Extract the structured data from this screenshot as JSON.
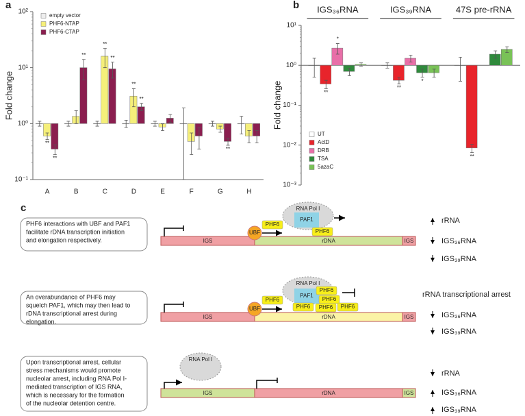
{
  "chart_data": [
    {
      "type": "bar",
      "label": "a",
      "y_label": "Fold change",
      "log_scale": true,
      "legend": "upper left",
      "category_axis": "bottom",
      "categories": [
        "A",
        "B",
        "C",
        "D",
        "E",
        "F",
        "G",
        "H"
      ],
      "ylim": [
        0.1,
        100
      ],
      "yticks": [
        {
          "value": 0.1,
          "label": "10⁻¹"
        },
        {
          "value": 1,
          "label": "10⁰"
        },
        {
          "value": 10,
          "label": "10¹"
        },
        {
          "value": 100,
          "label": "10²"
        }
      ],
      "series": [
        {
          "name": "empty vector",
          "color": "#eeeeee",
          "values": [
            1,
            1,
            1,
            1,
            1,
            1,
            1,
            1
          ],
          "errors": [
            0.1,
            0.1,
            0.1,
            0.15,
            0.1,
            0.9,
            0.1,
            0.35
          ],
          "significance": [
            null,
            null,
            null,
            null,
            null,
            null,
            null,
            null
          ]
        },
        {
          "name": "PHF6-NTAP",
          "color": "#f5ef7a",
          "values": [
            0.6,
            1.35,
            16,
            3.1,
            0.87,
            0.48,
            0.8,
            0.6
          ],
          "errors": [
            0.08,
            0.35,
            6,
            1.1,
            0.12,
            0.2,
            0.1,
            0.15
          ],
          "significance": [
            "**",
            null,
            "**",
            "**",
            null,
            null,
            null,
            null
          ]
        },
        {
          "name": "PHF6-CTAP",
          "color": "#8b1e4f",
          "values": [
            0.35,
            10,
            9.5,
            2,
            1.25,
            0.6,
            0.48,
            0.6
          ],
          "errors": [
            0.07,
            4,
            3,
            0.3,
            0.2,
            0.25,
            0.07,
            0.15
          ],
          "significance": [
            "**",
            "**",
            "**",
            "**",
            null,
            null,
            "**",
            null
          ]
        }
      ]
    },
    {
      "type": "bar",
      "label": "b",
      "y_label": "Fold change",
      "log_scale": true,
      "legend": "lower left",
      "category_axis": "top",
      "categories": [
        "IGS₃₆RNA",
        "IGS₃₉RNA",
        "47S pre-rRNA"
      ],
      "ylim": [
        0.001,
        10
      ],
      "yticks": [
        {
          "value": 0.001,
          "label": "10⁻³"
        },
        {
          "value": 0.01,
          "label": "10⁻²"
        },
        {
          "value": 0.1,
          "label": "10⁻¹"
        },
        {
          "value": 1,
          "label": "10⁰"
        },
        {
          "value": 10,
          "label": "10¹"
        }
      ],
      "series": [
        {
          "name": "UT",
          "color": "#ffffff",
          "values": [
            1,
            1,
            1
          ],
          "errors": [
            0.5,
            0.15,
            0.6
          ],
          "significance": [
            null,
            null,
            null
          ]
        },
        {
          "name": "ActD",
          "color": "#e8242b",
          "values": [
            0.34,
            0.42,
            0.0085
          ],
          "errors": [
            0.08,
            0.08,
            0.002
          ],
          "significance": [
            "**",
            "**",
            "**"
          ]
        },
        {
          "name": "DRB",
          "color": "#e86fa8",
          "values": [
            2.7,
            1.5,
            null
          ],
          "errors": [
            0.8,
            0.3,
            null
          ],
          "significance": [
            "*",
            null,
            null
          ]
        },
        {
          "name": "TSA",
          "color": "#2f8a3c",
          "values": [
            0.7,
            0.65,
            1.9
          ],
          "errors": [
            0.15,
            0.15,
            0.4
          ],
          "significance": [
            null,
            "*",
            null
          ]
        },
        {
          "name": "5azaC",
          "color": "#79c257",
          "values": [
            1.05,
            0.65,
            2.5
          ],
          "errors": [
            0.1,
            0.15,
            0.4
          ],
          "significance": [
            null,
            null,
            null
          ]
        }
      ]
    }
  ],
  "diagram": {
    "label": "c",
    "rows": [
      {
        "text": [
          "PHF6 interactions with UBF and PAF1",
          "facilitate rDNA transcription initiation",
          "and elongation respectively."
        ],
        "segments": [
          "IGS",
          "rDNA",
          "IGS"
        ],
        "segment_colors": [
          "#f0a0a4",
          "#cfe39a",
          "#f0a0a4"
        ],
        "proteins": [
          "UBF",
          "PHF6",
          "RNA Pol I",
          "PAF1",
          "PHF6"
        ],
        "outcomes": [
          {
            "direction": "up",
            "text": "rRNA"
          },
          {
            "direction": "down",
            "text": "IGS₃₆RNA"
          },
          {
            "direction": "down",
            "text": "IGS₃₉RNA"
          }
        ]
      },
      {
        "text": [
          "An overabundance of PHF6 may",
          "squelch PAF1, which may then lead to",
          "rDNA transcriptional arrest during",
          "elongation."
        ],
        "segments": [
          "IGS",
          "rDNA",
          "IGS"
        ],
        "segment_colors": [
          "#f0a0a4",
          "#fbf3a6",
          "#f0a0a4"
        ],
        "proteins": [
          "UBF",
          "PHF6",
          "RNA Pol I",
          "PAF1",
          "PHF6",
          "PHF6",
          "PHF6",
          "PHF6",
          "PHF6"
        ],
        "outcomes": [
          {
            "text": "rRNA transcriptional arrest"
          },
          {
            "direction": "down",
            "text": "IGS₃₆RNA"
          },
          {
            "direction": "down",
            "text": "IGS₃₉RNA"
          }
        ]
      },
      {
        "text": [
          "Upon transcriptional arrest, cellular",
          "stress mechanisms would promote",
          "nucleolar arrest, including RNA Pol I-",
          "mediated transcription of IGS RNA,",
          "which is necessary for the formation",
          "of the nucleolar detention centre."
        ],
        "segments": [
          "IGS",
          "rDNA",
          "IGS"
        ],
        "segment_colors": [
          "#cfe39a",
          "#f0a0a4",
          "#cfe39a"
        ],
        "proteins": [
          "RNA Pol I"
        ],
        "outcomes": [
          {
            "direction": "down",
            "text": "rRNA"
          },
          {
            "direction": "up",
            "text": "IGS₃₆RNA"
          },
          {
            "direction": "up",
            "text": "IGS₃₉RNA"
          }
        ]
      }
    ]
  }
}
